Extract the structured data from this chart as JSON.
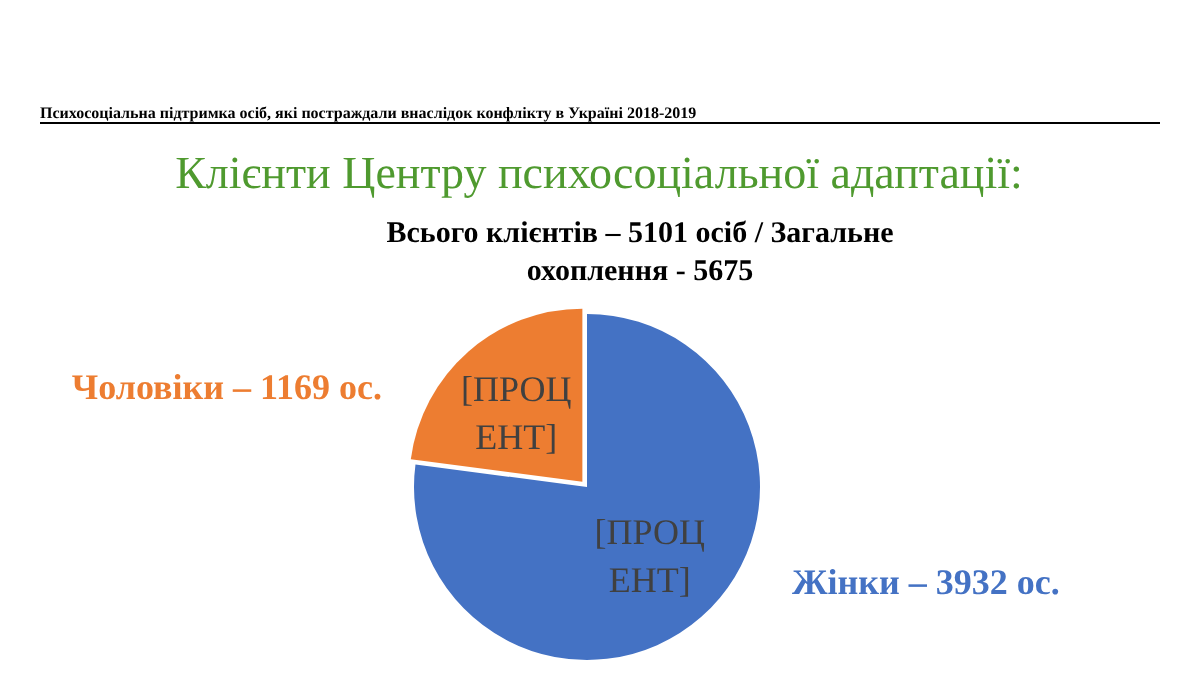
{
  "chart_data": {
    "type": "pie",
    "title": "Клієнти Центру психосоціальної адаптації:",
    "subtitle": "Всього клієнтів – 5101 осіб / Загальне охоплення - 5675",
    "annotations": [
      "Психосоціальна підтримка осіб, які постраждали внаслідок конфлікту в Україні 2018-2019"
    ],
    "categories": [
      "Жінки – 3932 ос.",
      "Чоловіки – 1169 ос."
    ],
    "values": [
      77.08,
      22.92
    ],
    "colors": [
      "#4472c4",
      "#ed7d31"
    ],
    "value_labels": [
      "[ПРОЦЕНТ]",
      "[ПРОЦЕНТ]"
    ],
    "legend": false
  }
}
